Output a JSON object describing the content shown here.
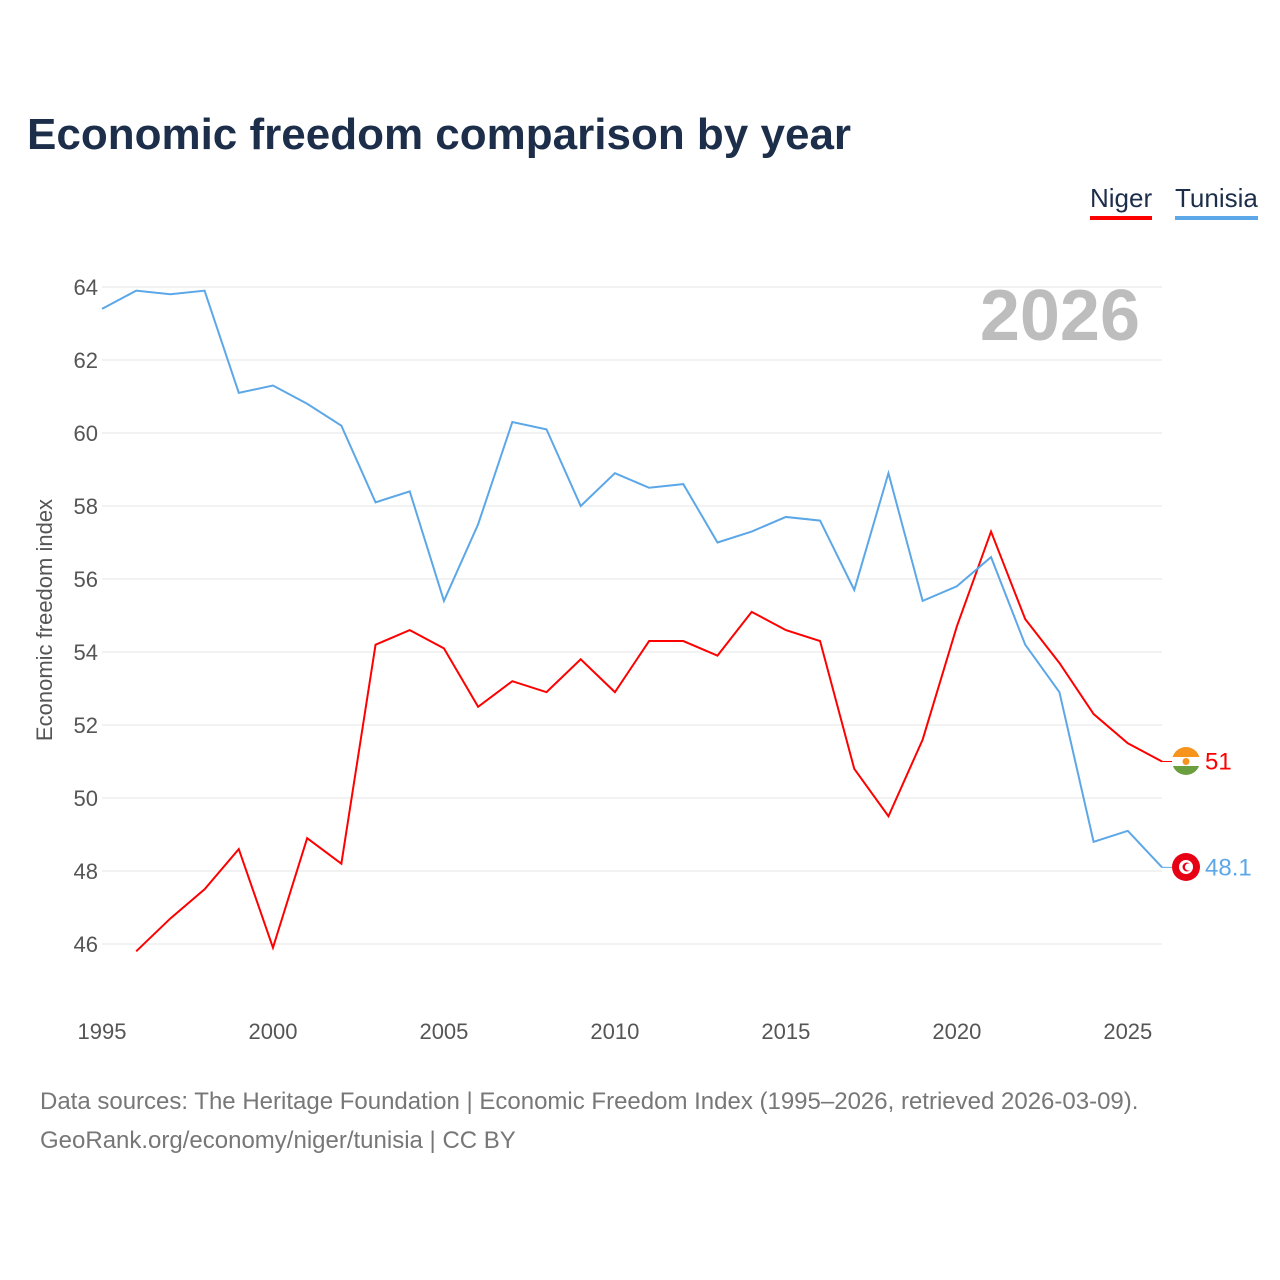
{
  "title": "Economic freedom comparison by year",
  "legend": [
    {
      "name": "Niger",
      "color": "#ff0000"
    },
    {
      "name": "Tunisia",
      "color": "#5ca7e8"
    }
  ],
  "year_watermark": "2026",
  "sources": [
    "Data sources: The Heritage Foundation | Economic Freedom Index (1995–2026, retrieved 2026-03-09).",
    "GeoRank.org/economy/niger/tunisia | CC BY"
  ],
  "chart_data": {
    "type": "line",
    "title": "Economic freedom comparison by year",
    "xlabel": "",
    "ylabel": "Economic freedom index",
    "xlim": [
      1995,
      2026
    ],
    "ylim": [
      44.5,
      64.5
    ],
    "x_ticks": [
      1995,
      2000,
      2005,
      2010,
      2015,
      2020,
      2025
    ],
    "y_ticks": [
      46,
      48,
      50,
      52,
      54,
      56,
      58,
      60,
      62,
      64
    ],
    "grid": true,
    "legend_position": "top-right",
    "series": [
      {
        "name": "Niger",
        "color": "#ff0000",
        "end_label": "51",
        "x": [
          1996,
          1997,
          1998,
          1999,
          2000,
          2001,
          2002,
          2003,
          2004,
          2005,
          2006,
          2007,
          2008,
          2009,
          2010,
          2011,
          2012,
          2013,
          2014,
          2015,
          2016,
          2017,
          2018,
          2019,
          2020,
          2021,
          2022,
          2023,
          2024,
          2025,
          2026
        ],
        "values": [
          45.8,
          46.7,
          47.5,
          48.6,
          45.9,
          48.9,
          48.2,
          54.2,
          54.6,
          54.1,
          52.5,
          53.2,
          52.9,
          53.8,
          52.9,
          54.3,
          54.3,
          53.9,
          55.1,
          54.6,
          54.3,
          50.8,
          49.5,
          51.6,
          54.7,
          57.3,
          54.9,
          53.7,
          52.3,
          51.5,
          51.0
        ]
      },
      {
        "name": "Tunisia",
        "color": "#5ca7e8",
        "end_label": "48.1",
        "x": [
          1995,
          1996,
          1997,
          1998,
          1999,
          2000,
          2001,
          2002,
          2003,
          2004,
          2005,
          2006,
          2007,
          2008,
          2009,
          2010,
          2011,
          2012,
          2013,
          2014,
          2015,
          2016,
          2017,
          2018,
          2019,
          2020,
          2021,
          2022,
          2023,
          2024,
          2025,
          2026
        ],
        "values": [
          63.4,
          63.9,
          63.8,
          63.9,
          61.1,
          61.3,
          60.8,
          60.2,
          58.1,
          58.4,
          55.4,
          57.5,
          60.3,
          60.1,
          58.0,
          58.9,
          58.5,
          58.6,
          57.0,
          57.3,
          57.7,
          57.6,
          55.7,
          58.9,
          55.4,
          55.8,
          56.6,
          54.2,
          52.9,
          48.8,
          49.1,
          48.1
        ]
      }
    ]
  }
}
